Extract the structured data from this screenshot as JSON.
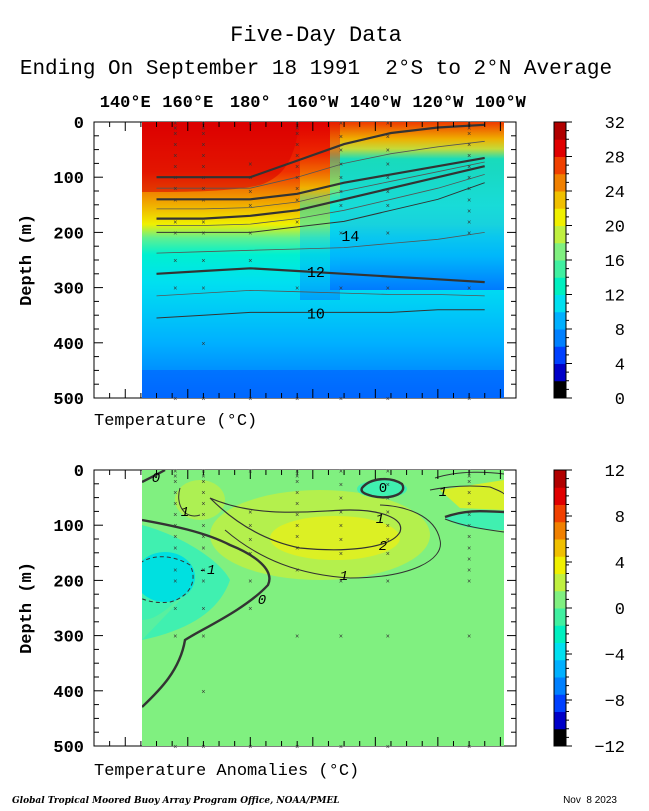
{
  "header": {
    "title": "Five-Day Data",
    "subtitle": "Ending On September 18 1991  2°S to 2°N Average"
  },
  "footer": {
    "credit": "Global Tropical Moored Buoy Array Program Office, NOAA/PMEL",
    "date": "Nov  8 2023"
  },
  "colors": {
    "scale": [
      "#000000",
      "#0000c8",
      "#0040ff",
      "#0080ff",
      "#00b0ff",
      "#00e0f0",
      "#00f0c0",
      "#40f0a0",
      "#80f080",
      "#c0f040",
      "#f0f000",
      "#f0c000",
      "#f08000",
      "#f04000",
      "#e00000",
      "#b00000"
    ]
  },
  "chart_data": [
    {
      "type": "heatmap",
      "title": "",
      "xlabel": "Temperature (°C)",
      "ylabel": "Depth (m)",
      "x_ticks": [
        "140°E",
        "160°E",
        "180°",
        "160°W",
        "140°W",
        "120°W",
        "100°W"
      ],
      "x_tick_lon": [
        140,
        160,
        180,
        200,
        220,
        240,
        260
      ],
      "xlim_lon": [
        130,
        265
      ],
      "data_lon_range": [
        150,
        255
      ],
      "y_ticks": [
        "0",
        "100",
        "200",
        "300",
        "400",
        "500"
      ],
      "ylim": [
        500,
        0
      ],
      "colorbar": {
        "min": 0,
        "max": 32,
        "ticks": [
          "32",
          "28",
          "24",
          "20",
          "16",
          "12",
          "8",
          "4",
          "0"
        ]
      },
      "contour_labels": [
        "14",
        "12",
        "10"
      ],
      "isotherm_depths": [
        {
          "value": 28,
          "depth": [
            100,
            100,
            100,
            70,
            40,
            20,
            10,
            5
          ]
        },
        {
          "value": 24,
          "depth": [
            140,
            140,
            140,
            130,
            110,
            95,
            80,
            65
          ]
        },
        {
          "value": 20,
          "depth": [
            175,
            175,
            170,
            160,
            140,
            120,
            100,
            80
          ]
        },
        {
          "value": 14,
          "depth": [
            200,
            200,
            200,
            190,
            180,
            160,
            140,
            110
          ]
        },
        {
          "value": 12,
          "depth": [
            275,
            270,
            265,
            270,
            275,
            280,
            285,
            290
          ]
        },
        {
          "value": 10,
          "depth": [
            355,
            350,
            345,
            345,
            345,
            345,
            340,
            340
          ]
        }
      ]
    },
    {
      "type": "heatmap",
      "title": "",
      "xlabel": "Temperature Anomalies (°C)",
      "ylabel": "Depth (m)",
      "x_ticks": [
        "140°E",
        "160°E",
        "180°",
        "160°W",
        "140°W",
        "120°W",
        "100°W"
      ],
      "x_tick_lon": [
        140,
        160,
        180,
        200,
        220,
        240,
        260
      ],
      "xlim_lon": [
        130,
        265
      ],
      "data_lon_range": [
        150,
        255
      ],
      "y_ticks": [
        "0",
        "100",
        "200",
        "300",
        "400",
        "500"
      ],
      "ylim": [
        500,
        0
      ],
      "colorbar": {
        "min": -12,
        "max": 12,
        "ticks": [
          "12",
          "8",
          "4",
          "0",
          "−4",
          "−8",
          "−12"
        ]
      },
      "contour_labels": [
        "0",
        "1",
        "1",
        "2",
        "1",
        "-1",
        "0",
        "1"
      ]
    }
  ]
}
